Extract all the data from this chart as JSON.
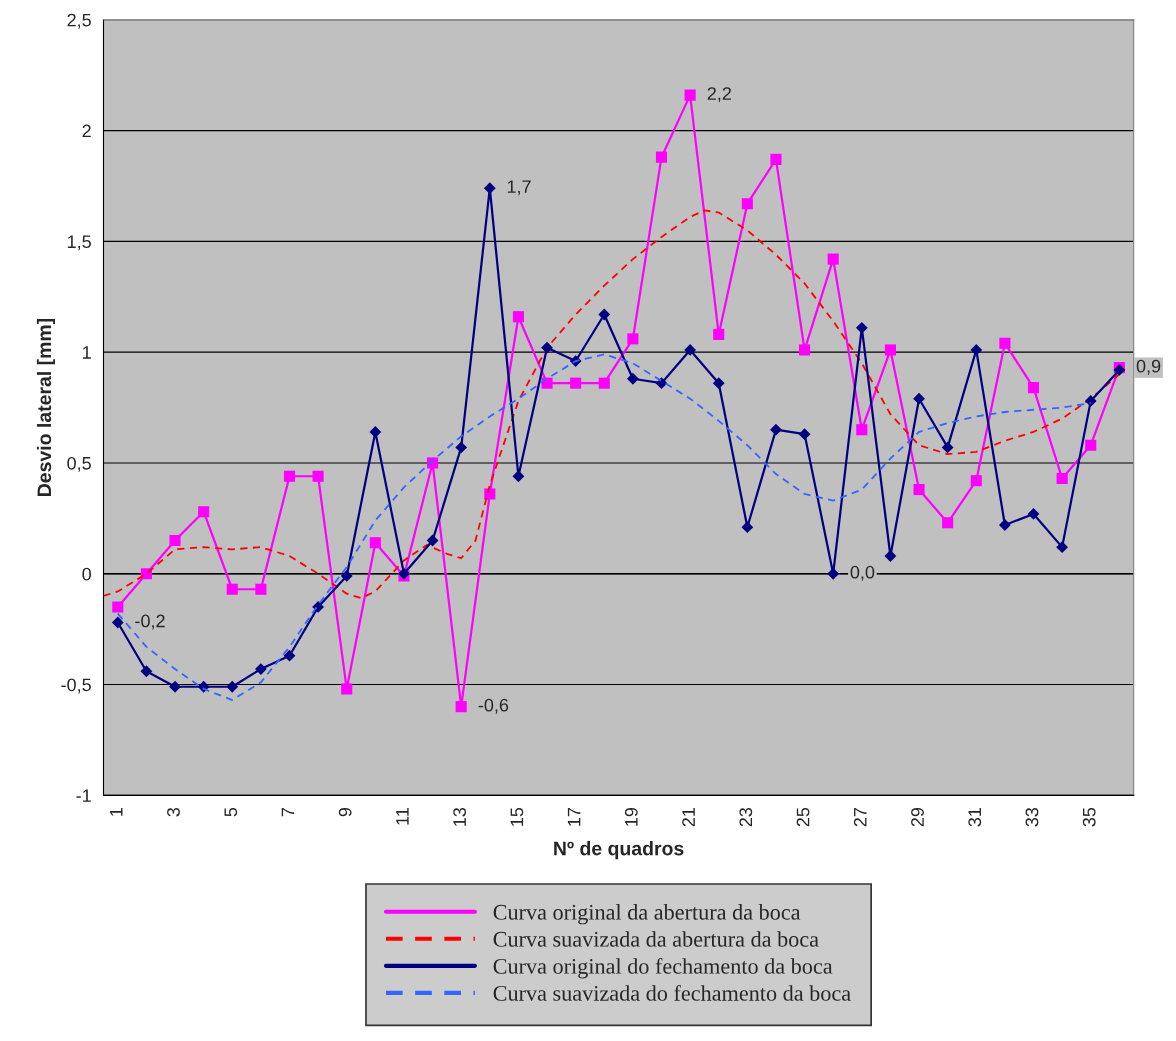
{
  "chart_data": {
    "type": "line",
    "xlabel": "Nº de quadros",
    "ylabel": "Desvio lateral [mm]",
    "xlim": [
      0.5,
      36.5
    ],
    "ylim": [
      -1,
      2.5
    ],
    "xticks": [
      1,
      3,
      5,
      7,
      9,
      11,
      13,
      15,
      17,
      19,
      21,
      23,
      25,
      27,
      29,
      31,
      33,
      35
    ],
    "yticks": [
      -1,
      {
        "value": -0.5,
        "label": "-0,5"
      },
      0,
      {
        "value": 0.5,
        "label": "0,5"
      },
      1,
      {
        "value": 1.5,
        "label": "1,5"
      },
      2,
      {
        "value": 2.5,
        "label": "2,5"
      }
    ],
    "grid": "y",
    "legend": "bottom",
    "x": [
      1,
      2,
      3,
      4,
      5,
      6,
      7,
      8,
      9,
      10,
      11,
      12,
      13,
      14,
      15,
      16,
      17,
      18,
      19,
      20,
      21,
      22,
      23,
      24,
      25,
      26,
      27,
      28,
      29,
      30,
      31,
      32,
      33,
      34,
      35,
      36
    ],
    "series": [
      {
        "name": "Curva original da abertura da boca",
        "color": "#ff00ff",
        "marker": "square",
        "line_style": "solid",
        "values": [
          -0.15,
          0.0,
          0.15,
          0.28,
          -0.07,
          -0.07,
          0.44,
          0.44,
          -0.52,
          0.14,
          -0.01,
          0.5,
          -0.6,
          0.36,
          1.16,
          0.86,
          0.86,
          0.86,
          1.06,
          1.88,
          2.16,
          1.08,
          1.67,
          1.87,
          1.01,
          1.42,
          0.65,
          1.01,
          0.38,
          0.23,
          0.42,
          1.04,
          0.84,
          0.43,
          0.58,
          0.93
        ],
        "value_labels": [
          null,
          null,
          null,
          null,
          null,
          null,
          null,
          null,
          null,
          null,
          null,
          null,
          "-0,6",
          null,
          null,
          null,
          null,
          null,
          null,
          null,
          "2,2",
          null,
          null,
          null,
          null,
          null,
          null,
          null,
          null,
          null,
          null,
          null,
          null,
          null,
          null,
          "0,9"
        ]
      },
      {
        "name": "Curva suavizada da abertura da boca",
        "color": "#ff0000",
        "marker": "none",
        "line_style": "dashed",
        "x": [
          0.5,
          1,
          2,
          3,
          4,
          5,
          6,
          7,
          8,
          9,
          9.5,
          10,
          11,
          11.8,
          12.5,
          13,
          13.5,
          14,
          15,
          16,
          17,
          18,
          19,
          20,
          21,
          21.5,
          22,
          23,
          24,
          25,
          26,
          27,
          28,
          29,
          30,
          31,
          32,
          33,
          34,
          35,
          36
        ],
        "values": [
          -0.1,
          -0.08,
          0.0,
          0.11,
          0.12,
          0.11,
          0.12,
          0.08,
          0.0,
          -0.09,
          -0.11,
          -0.08,
          0.06,
          0.13,
          0.09,
          0.07,
          0.15,
          0.4,
          0.78,
          1.02,
          1.17,
          1.3,
          1.42,
          1.52,
          1.61,
          1.64,
          1.63,
          1.55,
          1.44,
          1.31,
          1.14,
          0.95,
          0.72,
          0.58,
          0.54,
          0.55,
          0.6,
          0.64,
          0.7,
          0.79,
          0.9
        ]
      },
      {
        "name": "Curva original do fechamento da boca",
        "color": "#000080",
        "marker": "diamond",
        "line_style": "solid",
        "values": [
          -0.22,
          -0.44,
          -0.51,
          -0.51,
          -0.51,
          -0.43,
          -0.37,
          -0.15,
          -0.01,
          0.64,
          0.0,
          0.15,
          0.57,
          1.74,
          0.44,
          1.02,
          0.96,
          1.17,
          0.88,
          0.86,
          1.01,
          0.86,
          0.21,
          0.65,
          0.63,
          0.0,
          1.11,
          0.08,
          0.79,
          0.57,
          1.01,
          0.22,
          0.27,
          0.12,
          0.78,
          0.92
        ],
        "value_labels": [
          "-0,2",
          null,
          null,
          null,
          null,
          null,
          null,
          null,
          null,
          null,
          null,
          null,
          null,
          "1,7",
          null,
          null,
          null,
          null,
          null,
          null,
          null,
          null,
          null,
          null,
          null,
          "0,0",
          null,
          null,
          null,
          null,
          null,
          null,
          null,
          null,
          null,
          null
        ]
      },
      {
        "name": "Curva suavizada do fechamento da boca",
        "color": "#3366ff",
        "marker": "none",
        "line_style": "dashed",
        "x": [
          1,
          2,
          3,
          4,
          5,
          6,
          7,
          8,
          9,
          10,
          11,
          12,
          13,
          14,
          15,
          16,
          17,
          18,
          19,
          20,
          21,
          22,
          23,
          24,
          25,
          26,
          27,
          28,
          29,
          30,
          31,
          32,
          33,
          34,
          35
        ],
        "values": [
          -0.18,
          -0.33,
          -0.43,
          -0.52,
          -0.57,
          -0.49,
          -0.33,
          -0.14,
          0.03,
          0.24,
          0.39,
          0.51,
          0.62,
          0.71,
          0.79,
          0.88,
          0.96,
          0.99,
          0.95,
          0.87,
          0.79,
          0.69,
          0.58,
          0.45,
          0.36,
          0.33,
          0.38,
          0.52,
          0.64,
          0.68,
          0.71,
          0.73,
          0.74,
          0.75,
          0.77
        ]
      }
    ]
  }
}
